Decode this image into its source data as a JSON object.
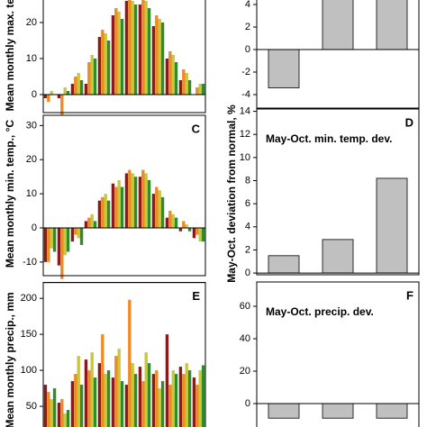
{
  "chart_data": [
    {
      "type": "grouped-bar",
      "ylabel": "Mean monthly max. temp., °C",
      "ylim": [
        -5,
        30
      ],
      "yticks": [
        0,
        10,
        20
      ],
      "series": [
        {
          "color": "#8b1a1a",
          "values": [
            -1,
            -1,
            3,
            3,
            16,
            22,
            26,
            25,
            19,
            10,
            4,
            0
          ]
        },
        {
          "color": "#f08a24",
          "values": [
            -2,
            -8,
            5,
            9,
            18,
            24,
            27,
            27,
            22,
            12,
            7,
            2
          ]
        },
        {
          "color": "#c8c83a",
          "values": [
            1,
            2,
            6,
            11,
            17,
            23,
            26,
            26,
            21,
            11,
            6,
            3
          ]
        },
        {
          "color": "#2e8b2e",
          "values": [
            0,
            1,
            4,
            10,
            15,
            21,
            25,
            24,
            20,
            9,
            4,
            3
          ]
        }
      ]
    },
    {
      "type": "grouped-bar",
      "label": "C",
      "ylabel": "Mean monthly min. temp., °C",
      "ylim": [
        -14,
        33
      ],
      "yticks": [
        -10,
        0,
        10,
        20,
        30
      ],
      "series": [
        {
          "color": "#8b1a1a",
          "values": [
            -10,
            -11,
            -4,
            2,
            8,
            13,
            16,
            15,
            10,
            3,
            -1,
            -3
          ]
        },
        {
          "color": "#f08a24",
          "values": [
            -10,
            -15,
            -2,
            3,
            9,
            12,
            17,
            17,
            12,
            5,
            2,
            -2
          ]
        },
        {
          "color": "#c8c83a",
          "values": [
            -6,
            -8,
            -3,
            4,
            10,
            14,
            16,
            16,
            11,
            4,
            1,
            -4
          ]
        },
        {
          "color": "#2e8b2e",
          "values": [
            -7,
            -7,
            -5,
            2,
            8,
            12,
            15,
            14,
            9,
            3,
            -1,
            -4
          ]
        }
      ]
    },
    {
      "type": "grouped-bar",
      "label": "E",
      "ylabel": "Mean monthly precip., mm",
      "ylim": [
        0,
        222
      ],
      "yticks": [
        50,
        100,
        150,
        200
      ],
      "series": [
        {
          "color": "#8b1a1a",
          "values": [
            80,
            55,
            85,
            115,
            110,
            90,
            80,
            105,
            95,
            150,
            105,
            90
          ]
        },
        {
          "color": "#f08a24",
          "values": [
            70,
            60,
            95,
            100,
            150,
            120,
            198,
            85,
            100,
            80,
            95,
            80
          ]
        },
        {
          "color": "#c8c83a",
          "values": [
            60,
            40,
            120,
            125,
            95,
            130,
            110,
            125,
            75,
            100,
            110,
            100
          ]
        },
        {
          "color": "#2e8b2e",
          "values": [
            75,
            45,
            80,
            90,
            100,
            85,
            95,
            110,
            85,
            95,
            100,
            107
          ]
        }
      ]
    },
    {
      "type": "bar",
      "ylim": [
        -5.2,
        6
      ],
      "yticks": [
        -4,
        -2,
        0,
        2,
        4
      ],
      "color": "#c0c0c0",
      "values": [
        -3.4,
        5,
        5
      ]
    },
    {
      "type": "bar",
      "label": "D",
      "title": "May-Oct. min. temp. dev.",
      "ylabel": "May-Oct. deviation from normal, %",
      "ylim": [
        -0.15,
        14.2
      ],
      "yticks": [
        0,
        2,
        4,
        6,
        8,
        10,
        12,
        14
      ],
      "color": "#c0c0c0",
      "values": [
        1.5,
        2.9,
        8.2
      ]
    },
    {
      "type": "bar",
      "label": "F",
      "title": "May-Oct. precip. dev.",
      "ylim": [
        -15,
        75
      ],
      "yticks": [
        0,
        20,
        40,
        60
      ],
      "color": "#c0c0c0",
      "values": [
        -9,
        -9,
        -9
      ]
    }
  ]
}
